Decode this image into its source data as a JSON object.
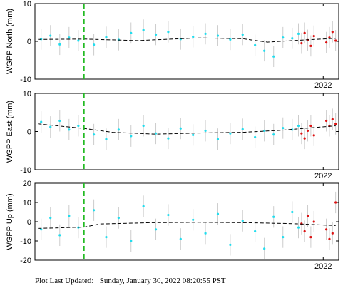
{
  "footer": {
    "label": "Plot Last Updated:",
    "timestamp": "Sunday, January 30, 2022 08:20:55 PST"
  },
  "colors": {
    "primary_points": "#22ddee",
    "rapid_points": "#dd1111",
    "error_bars": "#cccccc",
    "trend_line": "#000000",
    "event_line": "#22bb22"
  },
  "chart_data": [
    {
      "type": "scatter",
      "ylabel": "WGPP North (mm)",
      "ylim": [
        -10,
        10
      ],
      "yticks": [
        -10,
        0,
        10
      ],
      "xlim": [
        2017.35,
        2022.25
      ],
      "x_tick_labels": [
        {
          "x": 2022.0,
          "label": "2022"
        }
      ],
      "grid": false,
      "event_line_x": 2018.14,
      "trend": [
        [
          2017.4,
          0.5
        ],
        [
          2018.14,
          0.6
        ],
        [
          2019.0,
          0.2
        ],
        [
          2020.0,
          0.9
        ],
        [
          2020.7,
          0.7
        ],
        [
          2021.1,
          -0.2
        ],
        [
          2021.5,
          0.2
        ],
        [
          2022.2,
          0.8
        ]
      ],
      "series": [
        {
          "values": [
            [
              2017.45,
              0.6
            ],
            [
              2017.6,
              1.5
            ],
            [
              2017.75,
              -0.8
            ],
            [
              2017.9,
              1.0
            ],
            [
              2018.05,
              0.2
            ],
            [
              2018.3,
              -0.9
            ],
            [
              2018.5,
              1.1
            ],
            [
              2018.7,
              0.4
            ],
            [
              2018.9,
              2.2
            ],
            [
              2019.1,
              3.0
            ],
            [
              2019.3,
              1.8
            ],
            [
              2019.5,
              2.5
            ],
            [
              2019.7,
              0.6
            ],
            [
              2019.9,
              1.2
            ],
            [
              2020.1,
              2.0
            ],
            [
              2020.3,
              1.5
            ],
            [
              2020.5,
              0.5
            ],
            [
              2020.7,
              1.8
            ],
            [
              2020.9,
              -1.0
            ],
            [
              2021.05,
              -2.5
            ],
            [
              2021.2,
              -4.0
            ],
            [
              2021.35,
              1.0
            ],
            [
              2021.5,
              0.8
            ],
            [
              2021.6,
              2.0
            ]
          ]
        },
        {
          "values": [
            [
              2021.65,
              -0.5
            ],
            [
              2021.7,
              2.2
            ],
            [
              2021.75,
              0.3
            ],
            [
              2021.8,
              -1.2
            ],
            [
              2021.85,
              1.4
            ],
            [
              2022.05,
              -0.3
            ],
            [
              2022.1,
              1.0
            ],
            [
              2022.15,
              2.5
            ],
            [
              2022.2,
              0.2
            ]
          ]
        }
      ]
    },
    {
      "type": "scatter",
      "ylabel": "WGPP East (mm)",
      "ylim": [
        -10,
        10
      ],
      "yticks": [
        -10,
        0,
        10
      ],
      "xlim": [
        2017.35,
        2022.25
      ],
      "x_tick_labels": [
        {
          "x": 2022.0,
          "label": "2022"
        }
      ],
      "grid": false,
      "event_line_x": 2018.14,
      "trend": [
        [
          2017.4,
          2.0
        ],
        [
          2018.14,
          0.8
        ],
        [
          2018.6,
          -0.2
        ],
        [
          2019.3,
          -0.7
        ],
        [
          2020.0,
          -0.4
        ],
        [
          2020.7,
          -0.2
        ],
        [
          2021.3,
          0.3
        ],
        [
          2022.2,
          1.5
        ]
      ],
      "series": [
        {
          "values": [
            [
              2017.45,
              2.5
            ],
            [
              2017.6,
              1.2
            ],
            [
              2017.75,
              2.8
            ],
            [
              2017.9,
              0.5
            ],
            [
              2018.05,
              1.5
            ],
            [
              2018.3,
              -0.8
            ],
            [
              2018.5,
              -2.0
            ],
            [
              2018.7,
              0.5
            ],
            [
              2018.9,
              -1.2
            ],
            [
              2019.1,
              1.5
            ],
            [
              2019.3,
              -0.5
            ],
            [
              2019.5,
              -1.8
            ],
            [
              2019.7,
              0.8
            ],
            [
              2019.9,
              -0.9
            ],
            [
              2020.1,
              0.2
            ],
            [
              2020.3,
              -2.0
            ],
            [
              2020.5,
              -0.5
            ],
            [
              2020.7,
              0.6
            ],
            [
              2020.9,
              -1.5
            ],
            [
              2021.05,
              0.2
            ],
            [
              2021.2,
              -0.8
            ],
            [
              2021.35,
              0.9
            ],
            [
              2021.5,
              0.5
            ],
            [
              2021.6,
              1.5
            ]
          ]
        },
        {
          "values": [
            [
              2021.65,
              -0.5
            ],
            [
              2021.7,
              -1.8
            ],
            [
              2021.75,
              0.2
            ],
            [
              2021.8,
              1.5
            ],
            [
              2021.85,
              -1.0
            ],
            [
              2022.05,
              2.8
            ],
            [
              2022.1,
              1.5
            ],
            [
              2022.15,
              3.2
            ],
            [
              2022.2,
              2.0
            ]
          ]
        }
      ]
    },
    {
      "type": "scatter",
      "ylabel": "WGPP Up (mm)",
      "ylim": [
        -20,
        20
      ],
      "yticks": [
        -20,
        -10,
        0,
        10,
        20
      ],
      "xlim": [
        2017.35,
        2022.25
      ],
      "x_tick_labels": [
        {
          "x": 2022.0,
          "label": "2022"
        }
      ],
      "grid": false,
      "event_line_x": 2018.14,
      "trend": [
        [
          2017.4,
          -3.5
        ],
        [
          2018.14,
          -2.8
        ],
        [
          2018.4,
          -1.2
        ],
        [
          2019.2,
          -0.5
        ],
        [
          2020.0,
          -0.3
        ],
        [
          2020.8,
          -0.5
        ],
        [
          2021.5,
          -1.0
        ],
        [
          2022.2,
          -2.0
        ]
      ],
      "series": [
        {
          "values": [
            [
              2017.45,
              -4.0
            ],
            [
              2017.6,
              2.0
            ],
            [
              2017.75,
              -7.0
            ],
            [
              2017.9,
              3.0
            ],
            [
              2018.05,
              -3.0
            ],
            [
              2018.3,
              6.0
            ],
            [
              2018.5,
              -8.0
            ],
            [
              2018.7,
              2.0
            ],
            [
              2018.9,
              -10.0
            ],
            [
              2019.1,
              8.0
            ],
            [
              2019.3,
              -4.0
            ],
            [
              2019.5,
              3.5
            ],
            [
              2019.7,
              -9.0
            ],
            [
              2019.9,
              1.0
            ],
            [
              2020.1,
              -6.0
            ],
            [
              2020.3,
              4.0
            ],
            [
              2020.5,
              -12.0
            ],
            [
              2020.7,
              0.5
            ],
            [
              2020.9,
              -5.0
            ],
            [
              2021.05,
              -14.0
            ],
            [
              2021.2,
              2.5
            ],
            [
              2021.35,
              -8.0
            ],
            [
              2021.5,
              5.0
            ],
            [
              2021.6,
              -3.0
            ]
          ]
        },
        {
          "values": [
            [
              2021.65,
              -1.0
            ],
            [
              2021.7,
              -5.0
            ],
            [
              2021.75,
              3.0
            ],
            [
              2021.8,
              -8.0
            ],
            [
              2021.85,
              0.0
            ],
            [
              2022.05,
              -4.0
            ],
            [
              2022.1,
              -9.0
            ],
            [
              2022.15,
              -6.0
            ],
            [
              2022.2,
              10.0
            ]
          ]
        }
      ]
    }
  ]
}
